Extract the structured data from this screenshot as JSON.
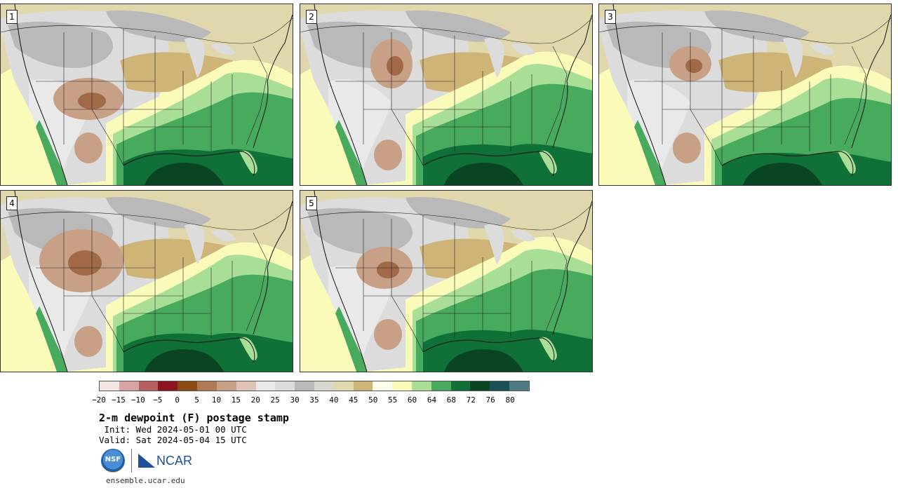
{
  "panels": [
    {
      "label": "1"
    },
    {
      "label": "2"
    },
    {
      "label": "3"
    },
    {
      "label": "4"
    },
    {
      "label": "5"
    }
  ],
  "colorbar": {
    "colors": [
      "#f4e5e5",
      "#d8a3a3",
      "#b55f5f",
      "#8e1420",
      "#8c4a14",
      "#b07a55",
      "#c8a085",
      "#dfc4b5",
      "#e9e9e9",
      "#dcdcdc",
      "#b9b9b9",
      "#d7d7cf",
      "#e1d7ad",
      "#cfb477",
      "#fdfce8",
      "#fafab9",
      "#a8de96",
      "#47aa5c",
      "#0f7137",
      "#0a4523",
      "#1d4f58",
      "#4f7c82"
    ],
    "ticks": [
      "−20",
      "−15",
      "−10",
      "−5",
      "0",
      "5",
      "10",
      "15",
      "20",
      "25",
      "30",
      "35",
      "40",
      "45",
      "50",
      "55",
      "60",
      "64",
      "68",
      "72",
      "76",
      "80"
    ]
  },
  "map_colors": {
    "very_dry": "#b9b9b9",
    "dry": "#dcdcdc",
    "light": "#e9e9e9",
    "tan": "#e1d7ad",
    "khaki": "#cfb477",
    "brown_light": "#c8a085",
    "brown": "#a06a48",
    "cream": "#fafab9",
    "light_green": "#a8de96",
    "green": "#47aa5c",
    "dark_green": "#0f7137",
    "darkest_green": "#0a4523",
    "boundary": "#222222"
  },
  "title": "2-m dewpoint (F) postage stamp",
  "init": " Init: Wed 2024-05-01 00 UTC",
  "valid": "Valid: Sat 2024-05-04 15 UTC",
  "logos": {
    "nsf": "NSF",
    "ncar": "NCAR"
  },
  "url": "ensemble.ucar.edu"
}
